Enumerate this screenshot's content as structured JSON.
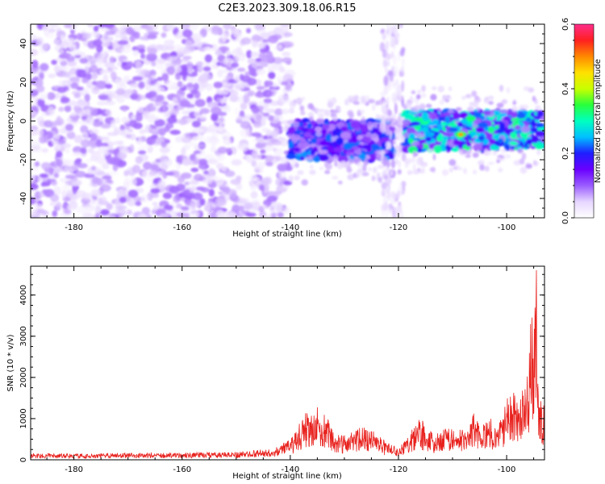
{
  "figure": {
    "title": "C2E3.2023.309.18.06.R15"
  },
  "chart_data": [
    {
      "type": "heatmap",
      "title": "C2E3.2023.309.18.06.R15",
      "xlabel": "Height of straight line (km)",
      "ylabel": "Frequency (Hz)",
      "xlim": [
        -188,
        -93
      ],
      "ylim": [
        -50,
        50
      ],
      "xticks": [
        -180,
        -160,
        -140,
        -120,
        -100
      ],
      "xtick_labels": [
        "-180",
        "-160",
        "-140",
        "-120",
        "-100"
      ],
      "yticks": [
        -40,
        -20,
        0,
        20,
        40
      ],
      "ytick_labels": [
        "-40",
        "-20",
        "0",
        "20",
        "40"
      ],
      "colorbar": {
        "label": "Normalized spectral amplitude",
        "range": [
          0.0,
          0.6
        ],
        "ticks": [
          0.0,
          0.2,
          0.4,
          0.6
        ],
        "tick_labels": [
          "0.0",
          "0.2",
          "0.4",
          "0.6"
        ],
        "colormap": [
          "#ffffff",
          "#e6d6ff",
          "#9a5cff",
          "#6a00ff",
          "#1e1eff",
          "#00c0ff",
          "#00ffc0",
          "#28ff3c",
          "#c8ff00",
          "#ffe000",
          "#ff8800",
          "#ff2020",
          "#ff2d8c"
        ]
      },
      "regions": [
        {
          "label": "broadband noise",
          "x": [
            -188,
            -140
          ],
          "freq": [
            -50,
            50
          ],
          "amplitude": 0.08
        },
        {
          "label": "echo trace",
          "x": [
            -140,
            -121
          ],
          "freq": [
            -20,
            0
          ],
          "amplitude": 0.22
        },
        {
          "label": "vertical streak",
          "x": [
            -123,
            -119
          ],
          "freq": [
            -50,
            50
          ],
          "amplitude": 0.05
        },
        {
          "label": "echo trace",
          "x": [
            -119,
            -93
          ],
          "freq": [
            -15,
            5
          ],
          "amplitude": 0.3
        }
      ],
      "peak": {
        "x": -108.5,
        "freq": -7,
        "amplitude": 0.5
      }
    },
    {
      "type": "line",
      "xlabel": "Height of straight line (km)",
      "ylabel": "SNR (10 * v/v)",
      "xlim": [
        -188,
        -93
      ],
      "ylim": [
        0,
        4700
      ],
      "xticks": [
        -180,
        -160,
        -140,
        -120,
        -100
      ],
      "xtick_labels": [
        "-180",
        "-160",
        "-140",
        "-120",
        "-100"
      ],
      "yticks": [
        0,
        1000,
        2000,
        3000,
        4000
      ],
      "ytick_labels": [
        "0",
        "1000",
        "2000",
        "3000",
        "4000"
      ],
      "color": "#e8211d",
      "envelope": {
        "x": [
          -188,
          -180,
          -170,
          -160,
          -150,
          -145,
          -142,
          -140,
          -138,
          -137,
          -136,
          -135,
          -134,
          -133,
          -132,
          -131,
          -130,
          -128,
          -126,
          -124,
          -123,
          -122,
          -120,
          -118,
          -117,
          -116,
          -115,
          -113,
          -111,
          -109,
          -107,
          -106,
          -105,
          -104,
          -103,
          -102,
          -101,
          -100,
          -99,
          -98,
          -97,
          -96,
          -95.5,
          -95,
          -94.5,
          -94,
          -93.5,
          -93
        ],
        "y": [
          150,
          150,
          160,
          170,
          190,
          240,
          320,
          500,
          900,
          1200,
          1000,
          1300,
          1100,
          1000,
          700,
          650,
          600,
          700,
          800,
          600,
          500,
          400,
          300,
          600,
          900,
          1000,
          800,
          600,
          800,
          700,
          800,
          1200,
          800,
          900,
          1000,
          900,
          1000,
          1500,
          1800,
          1400,
          1700,
          2200,
          3600,
          2800,
          4700,
          1500,
          1400,
          1300
        ]
      }
    }
  ]
}
